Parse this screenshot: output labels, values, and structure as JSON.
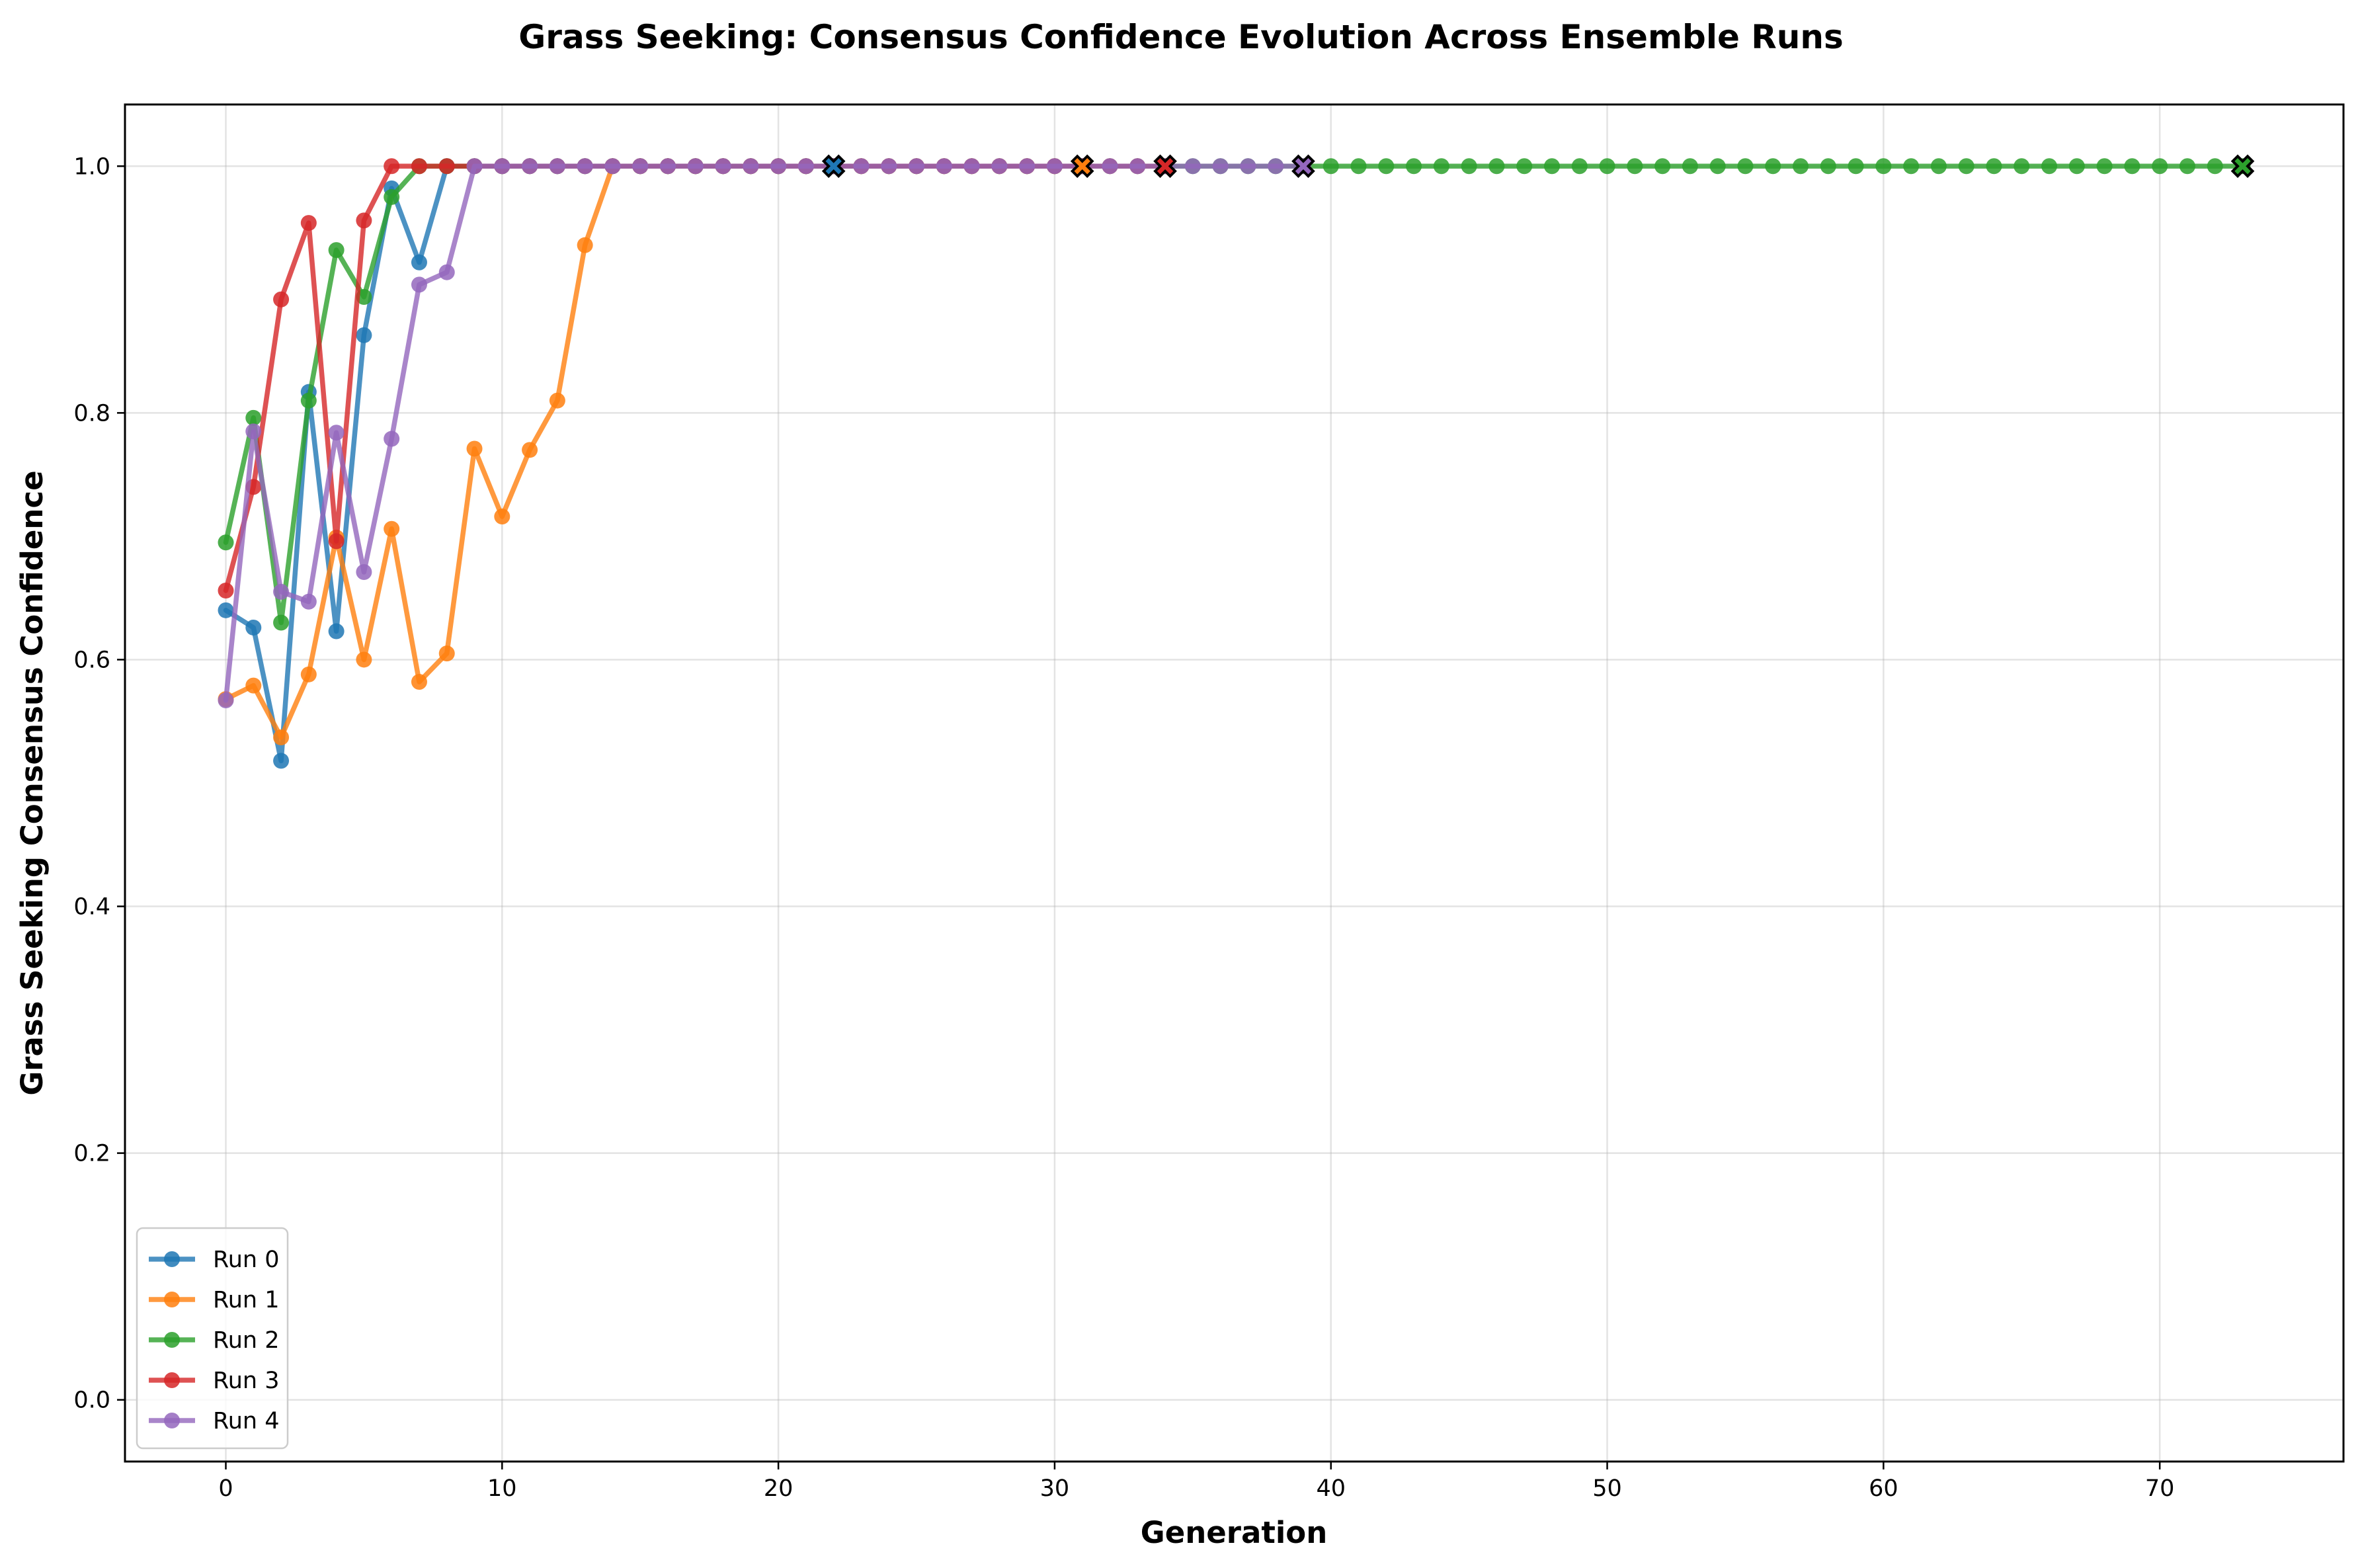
{
  "chart_data": {
    "type": "line",
    "title": "Grass Seeking: Consensus Confidence Evolution Across Ensemble Runs",
    "xlabel": "Generation",
    "ylabel": "Grass Seeking Consensus Confidence",
    "xlim": [
      -3.65,
      76.65
    ],
    "ylim": [
      -0.05,
      1.05
    ],
    "xticks": [
      0,
      10,
      20,
      30,
      40,
      50,
      60,
      70
    ],
    "xtick_labels": [
      "0",
      "10",
      "20",
      "30",
      "40",
      "50",
      "60",
      "70"
    ],
    "yticks": [
      0.0,
      0.2,
      0.4,
      0.6,
      0.8,
      1.0
    ],
    "ytick_labels": [
      "0.0",
      "0.2",
      "0.4",
      "0.6",
      "0.8",
      "1.0"
    ],
    "grid": true,
    "legend_position": "lower-left",
    "series": [
      {
        "name": "Run 0",
        "color": "#1f77b4",
        "y": [
          0.64,
          0.626,
          0.518,
          0.817,
          0.623,
          0.863,
          0.982,
          0.922,
          1,
          1,
          1,
          1,
          1,
          1,
          1,
          1,
          1,
          1,
          1,
          1,
          1,
          1,
          1
        ],
        "final_marker": {
          "x": 22,
          "y": 1.0
        }
      },
      {
        "name": "Run 1",
        "color": "#ff7f0e",
        "y": [
          0.568,
          0.579,
          0.537,
          0.588,
          0.699,
          0.6,
          0.706,
          0.582,
          0.605,
          0.771,
          0.716,
          0.77,
          0.81,
          0.936,
          1,
          1,
          1,
          1,
          1,
          1,
          1,
          1,
          1,
          1,
          1,
          1,
          1,
          1,
          1,
          1,
          1,
          1
        ],
        "final_marker": {
          "x": 31,
          "y": 1.0
        }
      },
      {
        "name": "Run 2",
        "color": "#2ca02c",
        "y": [
          0.695,
          0.796,
          0.63,
          0.81,
          0.932,
          0.894,
          0.975,
          1,
          1,
          1,
          1,
          1,
          1,
          1,
          1,
          1,
          1,
          1,
          1,
          1,
          1,
          1,
          1,
          1,
          1,
          1,
          1,
          1,
          1,
          1,
          1,
          1,
          1,
          1,
          1,
          1,
          1,
          1,
          1,
          1,
          1,
          1,
          1,
          1,
          1,
          1,
          1,
          1,
          1,
          1,
          1,
          1,
          1,
          1,
          1,
          1,
          1,
          1,
          1,
          1,
          1,
          1,
          1,
          1,
          1,
          1,
          1,
          1,
          1,
          1,
          1,
          1,
          1,
          1
        ],
        "final_marker": {
          "x": 73,
          "y": 1.0
        }
      },
      {
        "name": "Run 3",
        "color": "#d62728",
        "y": [
          0.656,
          0.74,
          0.892,
          0.954,
          0.696,
          0.956,
          1,
          1,
          1,
          1,
          1,
          1,
          1,
          1,
          1,
          1,
          1,
          1,
          1,
          1,
          1,
          1,
          1,
          1,
          1,
          1,
          1,
          1,
          1,
          1,
          1,
          1,
          1,
          1,
          1
        ],
        "final_marker": {
          "x": 34,
          "y": 1.0
        }
      },
      {
        "name": "Run 4",
        "color": "#9467bd",
        "y": [
          0.567,
          0.785,
          0.655,
          0.647,
          0.784,
          0.671,
          0.779,
          0.904,
          0.914,
          1,
          1,
          1,
          1,
          1,
          1,
          1,
          1,
          1,
          1,
          1,
          1,
          1,
          1,
          1,
          1,
          1,
          1,
          1,
          1,
          1,
          1,
          1,
          1,
          1,
          1,
          1,
          1,
          1,
          1,
          1
        ],
        "final_marker": {
          "x": 39,
          "y": 1.0
        }
      }
    ]
  }
}
